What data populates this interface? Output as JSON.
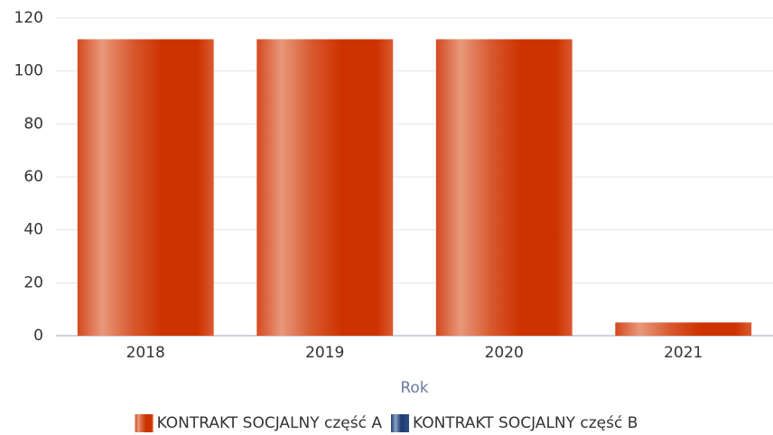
{
  "chart_data": {
    "type": "bar",
    "categories": [
      "2018",
      "2019",
      "2020",
      "2021"
    ],
    "x_label": "Rok",
    "series": [
      {
        "name": "KONTRAKT SOCJALNY część A",
        "color": "#cc3300",
        "values": [
          112,
          112,
          112,
          5
        ]
      },
      {
        "name": "KONTRAKT SOCJALNY część B",
        "color": "#1f3d6e",
        "values": [
          null,
          null,
          null,
          null
        ]
      }
    ],
    "ylim": [
      0,
      120
    ],
    "yticks": [
      0,
      20,
      40,
      60,
      80,
      100,
      120
    ],
    "grid": true,
    "legend": "bottom"
  }
}
